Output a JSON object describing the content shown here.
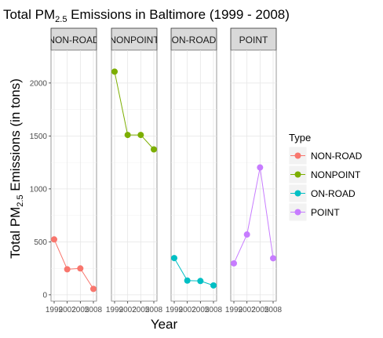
{
  "chart_data": {
    "type": "line",
    "title_main": "Total PM",
    "title_sub": "2.5",
    "title_rest": " Emissions in Baltimore (1999 - 2008)",
    "xlabel": "Year",
    "ylabel_main": "Total PM",
    "ylabel_sub": "2.5",
    "ylabel_rest": " Emissions (in tons)",
    "x": [
      1999,
      2002,
      2005,
      2008
    ],
    "x_tick_labels": [
      "1999",
      "2002",
      "2005",
      "2008"
    ],
    "ylim": [
      -60,
      2310
    ],
    "y_ticks": [
      0,
      500,
      1000,
      1500,
      2000
    ],
    "grid": true,
    "legend": {
      "title": "Type",
      "placement": "right"
    },
    "series": [
      {
        "name": "NON-ROAD",
        "color": "#F8766D",
        "values": [
          522.94,
          240.85,
          248.93,
          55.82
        ]
      },
      {
        "name": "NONPOINT",
        "color": "#7CAE00",
        "values": [
          2107.63,
          1509.5,
          1509.5,
          1373.21
        ]
      },
      {
        "name": "ON-ROAD",
        "color": "#00BFC4",
        "values": [
          346.82,
          134.31,
          130.43,
          88.28
        ]
      },
      {
        "name": "POINT",
        "color": "#C77CFF",
        "values": [
          296.8,
          569.26,
          1202.49,
          344.98
        ]
      }
    ]
  }
}
